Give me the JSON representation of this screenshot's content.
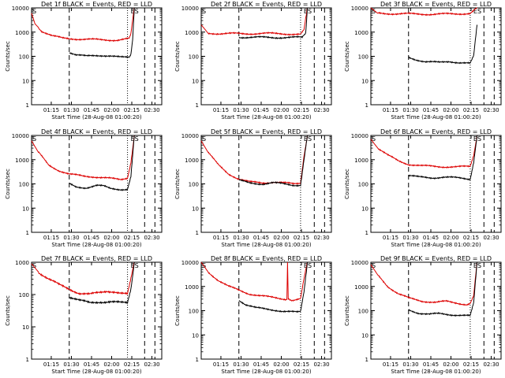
{
  "page": {
    "background": "#ffffff"
  },
  "colors": {
    "events": "#000000",
    "lld": "#dd0000",
    "frame": "#000000"
  },
  "common": {
    "ylabel": "Counts/sec",
    "xlabel": "Start Time (28-Aug-08 01:00:20)",
    "x_tick_labels": [
      "01:15",
      "01:30",
      "01:45",
      "02:00",
      "02:15",
      "02:30"
    ],
    "y_tick_labels": [
      "1",
      "10",
      "100",
      "1000",
      "10000"
    ],
    "corner_left": "S",
    "corner_right": "ES"
  },
  "chart_data": [
    {
      "type": "line",
      "title": "Det 1f BLACK = Events, RED = LLD",
      "x_range_min": [
        0,
        38
      ],
      "y_scale": "log",
      "ylim": [
        1,
        10000
      ],
      "markers_min": {
        "dashed": [
          11,
          33,
          36
        ],
        "dotted": [
          28
        ]
      },
      "series": [
        {
          "name": "LLD",
          "points": [
            [
              0,
              6000
            ],
            [
              1,
              2200
            ],
            [
              3,
              1100
            ],
            [
              6,
              700
            ],
            [
              9,
              560
            ],
            [
              15,
              510
            ],
            [
              20,
              480
            ],
            [
              25,
              470
            ],
            [
              28.5,
              530
            ],
            [
              29,
              800
            ],
            [
              29.5,
              3000
            ],
            [
              30,
              10000
            ]
          ]
        },
        {
          "name": "Events",
          "points": [
            [
              11,
              150
            ],
            [
              13,
              115
            ],
            [
              16,
              100
            ],
            [
              19,
              108
            ],
            [
              21,
              110
            ],
            [
              23,
              105
            ],
            [
              26,
              90
            ],
            [
              28.5,
              90
            ],
            [
              29,
              120
            ],
            [
              29.5,
              500
            ],
            [
              30,
              10000
            ]
          ]
        }
      ]
    },
    {
      "type": "line",
      "title": "Det 2f BLACK = Events, RED = LLD",
      "x_range_min": [
        0,
        38
      ],
      "y_scale": "log",
      "ylim": [
        1,
        10000
      ],
      "markers_min": {
        "dashed": [
          11,
          33,
          36
        ],
        "dotted": [
          29
        ]
      },
      "series": [
        {
          "name": "LLD",
          "points": [
            [
              0,
              2000
            ],
            [
              2,
              900
            ],
            [
              6,
              870
            ],
            [
              12,
              860
            ],
            [
              18,
              880
            ],
            [
              24,
              860
            ],
            [
              29,
              800
            ],
            [
              30,
              1200
            ],
            [
              31,
              10000
            ]
          ]
        },
        {
          "name": "Events",
          "points": [
            [
              11,
              620
            ],
            [
              14,
              610
            ],
            [
              20,
              600
            ],
            [
              26,
              600
            ],
            [
              29.5,
              600
            ],
            [
              30.5,
              900
            ],
            [
              31,
              10000
            ]
          ]
        }
      ]
    },
    {
      "type": "line",
      "title": "Det 3f BLACK = Events, RED = LLD",
      "x_range_min": [
        0,
        38
      ],
      "y_scale": "log",
      "ylim": [
        1,
        10000
      ],
      "markers_min": {
        "dashed": [
          11,
          33,
          36
        ],
        "dotted": [
          29
        ]
      },
      "series": [
        {
          "name": "LLD",
          "points": [
            [
              0,
              10000
            ],
            [
              2,
              6000
            ],
            [
              6,
              5800
            ],
            [
              12,
              5600
            ],
            [
              18,
              5500
            ],
            [
              24,
              5600
            ],
            [
              29,
              6000
            ],
            [
              31,
              10000
            ]
          ]
        },
        {
          "name": "Events",
          "points": [
            [
              11,
              90
            ],
            [
              13,
              75
            ],
            [
              16,
              60
            ],
            [
              20,
              55
            ],
            [
              23,
              62
            ],
            [
              26,
              55
            ],
            [
              29,
              50
            ],
            [
              30,
              100
            ],
            [
              31,
              2000
            ]
          ]
        }
      ]
    },
    {
      "type": "line",
      "title": "Det 4f BLACK = Events, RED = LLD",
      "x_range_min": [
        0,
        38
      ],
      "y_scale": "log",
      "ylim": [
        1,
        10000
      ],
      "markers_min": {
        "dashed": [
          11,
          33,
          36
        ],
        "dotted": [
          28
        ]
      },
      "series": [
        {
          "name": "LLD",
          "points": [
            [
              0,
              6000
            ],
            [
              2,
              2000
            ],
            [
              5,
              600
            ],
            [
              8,
              360
            ],
            [
              11,
              250
            ],
            [
              15,
              210
            ],
            [
              18,
              200
            ],
            [
              21,
              180
            ],
            [
              24,
              160
            ],
            [
              26,
              150
            ],
            [
              28,
              180
            ],
            [
              29,
              800
            ],
            [
              30,
              10000
            ]
          ]
        },
        {
          "name": "Events",
          "points": [
            [
              11,
              100
            ],
            [
              13,
              75
            ],
            [
              16,
              70
            ],
            [
              19,
              85
            ],
            [
              21,
              80
            ],
            [
              23,
              65
            ],
            [
              26,
              60
            ],
            [
              28,
              60
            ],
            [
              29,
              200
            ],
            [
              30,
              10000
            ]
          ]
        }
      ]
    },
    {
      "type": "line",
      "title": "Det 5f BLACK = Events, RED = LLD",
      "x_range_min": [
        0,
        38
      ],
      "y_scale": "log",
      "ylim": [
        1,
        10000
      ],
      "markers_min": {
        "dashed": [
          11,
          33,
          36
        ],
        "dotted": [
          29
        ]
      },
      "series": [
        {
          "name": "LLD",
          "points": [
            [
              0,
              6000
            ],
            [
              2,
              2000
            ],
            [
              5,
              600
            ],
            [
              8,
              260
            ],
            [
              11,
              160
            ],
            [
              14,
              120
            ],
            [
              18,
              110
            ],
            [
              21,
              120
            ],
            [
              24,
              110
            ],
            [
              27,
              100
            ],
            [
              29,
              110
            ],
            [
              30,
              1500
            ],
            [
              31,
              10000
            ]
          ]
        },
        {
          "name": "Events",
          "points": [
            [
              11,
              140
            ],
            [
              14,
              110
            ],
            [
              18,
              100
            ],
            [
              21,
              110
            ],
            [
              24,
              100
            ],
            [
              27,
              90
            ],
            [
              29,
              90
            ],
            [
              30,
              1000
            ],
            [
              31,
              10000
            ]
          ]
        }
      ]
    },
    {
      "type": "line",
      "title": "Det 6f BLACK = Events, RED = LLD",
      "x_range_min": [
        0,
        38
      ],
      "y_scale": "log",
      "ylim": [
        1,
        10000
      ],
      "markers_min": {
        "dashed": [
          11,
          33,
          36
        ],
        "dotted": [
          29
        ]
      },
      "series": [
        {
          "name": "LLD",
          "points": [
            [
              0,
              7000
            ],
            [
              2,
              3000
            ],
            [
              5,
              1500
            ],
            [
              8,
              900
            ],
            [
              11,
              650
            ],
            [
              15,
              550
            ],
            [
              20,
              520
            ],
            [
              25,
              500
            ],
            [
              29,
              520
            ],
            [
              30,
              1500
            ],
            [
              31,
              10000
            ]
          ]
        },
        {
          "name": "Events",
          "points": [
            [
              11,
              220
            ],
            [
              14,
              190
            ],
            [
              18,
              180
            ],
            [
              21,
              190
            ],
            [
              24,
              180
            ],
            [
              27,
              170
            ],
            [
              29,
              160
            ],
            [
              30,
              800
            ],
            [
              31,
              10000
            ]
          ]
        }
      ]
    },
    {
      "type": "line",
      "title": "Det 7f BLACK = Events, RED = LLD",
      "x_range_min": [
        0,
        38
      ],
      "y_scale": "log",
      "ylim": [
        1,
        1000
      ],
      "markers_min": {
        "dashed": [
          11,
          33,
          36
        ],
        "dotted": [
          28
        ]
      },
      "series": [
        {
          "name": "LLD",
          "points": [
            [
              0,
              900
            ],
            [
              2,
              500
            ],
            [
              5,
              300
            ],
            [
              8,
              200
            ],
            [
              11,
              150
            ],
            [
              14,
              110
            ],
            [
              17,
              100
            ],
            [
              20,
              115
            ],
            [
              22,
              130
            ],
            [
              24,
              125
            ],
            [
              26,
              110
            ],
            [
              28,
              100
            ],
            [
              29,
              300
            ],
            [
              30,
              1000
            ]
          ]
        },
        {
          "name": "Events",
          "points": [
            [
              11,
              85
            ],
            [
              14,
              65
            ],
            [
              17,
              55
            ],
            [
              20,
              60
            ],
            [
              23,
              60
            ],
            [
              26,
              55
            ],
            [
              28,
              55
            ],
            [
              29,
              150
            ],
            [
              30,
              1000
            ]
          ]
        }
      ]
    },
    {
      "type": "line",
      "title": "Det 8f BLACK = Events, RED = LLD",
      "x_range_min": [
        0,
        38
      ],
      "y_scale": "log",
      "ylim": [
        1,
        10000
      ],
      "markers_min": {
        "dashed": [
          11,
          33,
          36
        ],
        "dotted": [
          29
        ]
      },
      "series": [
        {
          "name": "LLD",
          "points": [
            [
              0,
              10000
            ],
            [
              2,
              4000
            ],
            [
              5,
              1800
            ],
            [
              8,
              1000
            ],
            [
              11,
              700
            ],
            [
              14,
              500
            ],
            [
              17,
              420
            ],
            [
              20,
              360
            ],
            [
              23,
              320
            ],
            [
              25,
              300
            ],
            [
              25.2,
              10000
            ],
            [
              25.4,
              300
            ],
            [
              27,
              270
            ],
            [
              29,
              300
            ],
            [
              30,
              2000
            ],
            [
              31,
              10000
            ]
          ]
        },
        {
          "name": "Events",
          "points": [
            [
              11,
              280
            ],
            [
              13,
              180
            ],
            [
              16,
              130
            ],
            [
              19,
              115
            ],
            [
              22,
              105
            ],
            [
              24,
              95
            ],
            [
              26,
              90
            ],
            [
              28,
              85
            ],
            [
              29,
              90
            ],
            [
              30,
              600
            ],
            [
              31,
              10000
            ]
          ]
        }
      ]
    },
    {
      "type": "line",
      "title": "Det 9f BLACK = Events, RED = LLD",
      "x_range_min": [
        0,
        38
      ],
      "y_scale": "log",
      "ylim": [
        1,
        10000
      ],
      "markers_min": {
        "dashed": [
          11,
          33,
          36
        ],
        "dotted": [
          29
        ]
      },
      "series": [
        {
          "name": "LLD",
          "points": [
            [
              0,
              8000
            ],
            [
              2,
              3000
            ],
            [
              5,
              1000
            ],
            [
              8,
              500
            ],
            [
              11,
              330
            ],
            [
              15,
              250
            ],
            [
              19,
              220
            ],
            [
              22,
              240
            ],
            [
              25,
              210
            ],
            [
              28,
              180
            ],
            [
              29,
              200
            ],
            [
              30,
              400
            ],
            [
              31,
              10000
            ]
          ]
        },
        {
          "name": "Events",
          "points": [
            [
              11,
              110
            ],
            [
              14,
              80
            ],
            [
              17,
              70
            ],
            [
              20,
              75
            ],
            [
              23,
              70
            ],
            [
              26,
              65
            ],
            [
              29,
              60
            ],
            [
              30,
              200
            ],
            [
              31,
              10000
            ]
          ]
        }
      ]
    }
  ]
}
